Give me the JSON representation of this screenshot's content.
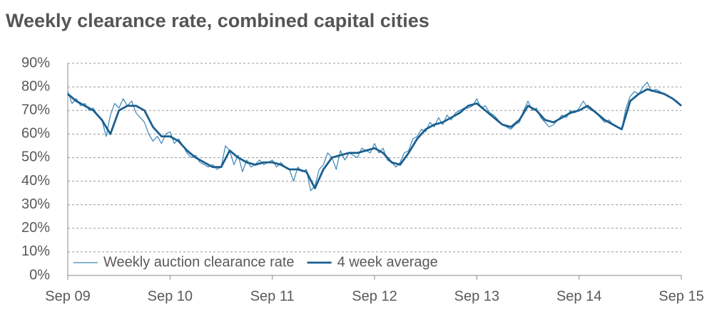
{
  "chart_data": {
    "type": "line",
    "title": "Weekly clearance rate, combined capital cities",
    "xlim": [
      0,
      72
    ],
    "xticks": [
      {
        "value": 0,
        "label": "Sep 09"
      },
      {
        "value": 12,
        "label": "Sep 10"
      },
      {
        "value": 24,
        "label": "Sep 11"
      },
      {
        "value": 36,
        "label": "Sep 12"
      },
      {
        "value": 48,
        "label": "Sep 13"
      },
      {
        "value": 60,
        "label": "Sep 14"
      },
      {
        "value": 72,
        "label": "Sep 15"
      }
    ],
    "ylim": [
      0,
      90
    ],
    "yticks": [
      {
        "value": 0,
        "label": "0%"
      },
      {
        "value": 10,
        "label": "10%"
      },
      {
        "value": 20,
        "label": "20%"
      },
      {
        "value": 30,
        "label": "30%"
      },
      {
        "value": 40,
        "label": "40%"
      },
      {
        "value": 50,
        "label": "50%"
      },
      {
        "value": 60,
        "label": "60%"
      },
      {
        "value": 70,
        "label": "70%"
      },
      {
        "value": 80,
        "label": "80%"
      },
      {
        "value": 90,
        "label": "90%"
      }
    ],
    "grid": true,
    "legend": "lower left",
    "series": [
      {
        "name": "Weekly auction clearance rate",
        "color": "#3b86b8",
        "x": [
          0,
          0.5,
          1,
          1.5,
          2,
          2.5,
          3,
          3.5,
          4,
          4.5,
          5,
          5.5,
          6,
          6.5,
          7,
          7.5,
          8,
          8.5,
          9,
          9.5,
          10,
          10.5,
          11,
          11.5,
          12,
          12.5,
          13,
          13.5,
          14,
          14.5,
          15,
          15.5,
          16,
          16.5,
          17,
          17.5,
          18,
          18.5,
          19,
          19.5,
          20,
          20.5,
          21,
          21.5,
          22,
          22.5,
          23,
          23.5,
          24,
          24.5,
          25,
          25.5,
          26,
          26.5,
          27,
          27.5,
          28,
          28.5,
          29,
          29.5,
          30,
          30.5,
          31,
          31.5,
          32,
          32.5,
          33,
          33.5,
          34,
          34.5,
          35,
          35.5,
          36,
          36.5,
          37,
          37.5,
          38,
          38.5,
          39,
          39.5,
          40,
          40.5,
          41,
          41.5,
          42,
          42.5,
          43,
          43.5,
          44,
          44.5,
          45,
          45.5,
          46,
          46.5,
          47,
          47.5,
          48,
          48.5,
          49,
          49.5,
          50,
          50.5,
          51,
          51.5,
          52,
          52.5,
          53,
          53.5,
          54,
          54.5,
          55,
          55.5,
          56,
          56.5,
          57,
          57.5,
          58,
          58.5,
          59,
          59.5,
          60,
          60.5,
          61,
          61.5,
          62,
          62.5,
          63,
          63.5,
          64,
          64.5,
          65,
          65.5,
          66,
          66.5,
          67,
          67.5,
          68,
          68.5,
          69,
          69.5,
          70,
          70.5,
          71,
          71.5,
          72
        ],
        "values": [
          78,
          73,
          75,
          72,
          73,
          70,
          71,
          68,
          66,
          59,
          68,
          73,
          71,
          75,
          72,
          74,
          69,
          67,
          65,
          60,
          57,
          59,
          56,
          60,
          61,
          56,
          58,
          55,
          52,
          50,
          51,
          48,
          47,
          46,
          47,
          45,
          46,
          55,
          53,
          47,
          51,
          44,
          49,
          46,
          47,
          49,
          47,
          48,
          49,
          46,
          48,
          46,
          45,
          40,
          46,
          44,
          45,
          36,
          38,
          45,
          47,
          52,
          50,
          45,
          53,
          49,
          52,
          51,
          50,
          54,
          53,
          52,
          56,
          52,
          54,
          49,
          48,
          46,
          48,
          52,
          53,
          58,
          59,
          62,
          61,
          65,
          63,
          67,
          64,
          68,
          66,
          69,
          70,
          71,
          71,
          72,
          75,
          71,
          72,
          69,
          68,
          66,
          64,
          63,
          62,
          64,
          65,
          70,
          74,
          70,
          71,
          67,
          65,
          63,
          64,
          66,
          68,
          67,
          70,
          69,
          71,
          74,
          71,
          70,
          69,
          67,
          65,
          66,
          64,
          63,
          62,
          71,
          76,
          78,
          77,
          80,
          82,
          78,
          79,
          78,
          77,
          76,
          75,
          74,
          72
        ]
      },
      {
        "name": "4 week average",
        "color": "#1b5f8e",
        "x": [
          0,
          1,
          2,
          3,
          4,
          5,
          6,
          7,
          8,
          9,
          10,
          11,
          12,
          13,
          14,
          15,
          16,
          17,
          18,
          19,
          20,
          21,
          22,
          23,
          24,
          25,
          26,
          27,
          28,
          29,
          30,
          31,
          32,
          33,
          34,
          35,
          36,
          37,
          38,
          39,
          40,
          41,
          42,
          43,
          44,
          45,
          46,
          47,
          48,
          49,
          50,
          51,
          52,
          53,
          54,
          55,
          56,
          57,
          58,
          59,
          60,
          61,
          62,
          63,
          64,
          65,
          66,
          67,
          68,
          69,
          70,
          71,
          72
        ],
        "values": [
          77,
          74,
          72,
          70,
          66,
          60,
          70,
          72,
          72,
          70,
          63,
          59,
          59,
          57,
          53,
          50,
          48,
          46,
          46,
          53,
          50,
          48,
          47,
          48,
          48,
          47,
          45,
          45,
          44,
          37,
          45,
          50,
          51,
          52,
          52,
          53,
          54,
          52,
          48,
          47,
          52,
          58,
          62,
          64,
          65,
          67,
          69,
          72,
          73,
          70,
          67,
          64,
          63,
          66,
          72,
          70,
          66,
          65,
          67,
          69,
          70,
          72,
          69,
          66,
          64,
          62,
          74,
          77,
          79,
          78,
          77,
          75,
          72
        ]
      }
    ]
  }
}
